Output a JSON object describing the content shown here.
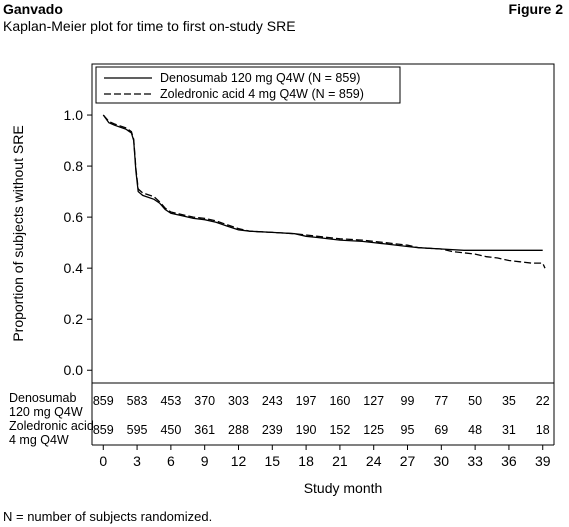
{
  "header": {
    "title": "Ganvado",
    "figure_label": "Figure 2",
    "subtitle": "Kaplan-Meier plot for time to first on-study SRE"
  },
  "footnote": "N = number of subjects randomized.",
  "colors": {
    "line": "#000000",
    "background": "#ffffff"
  },
  "chart_data": {
    "type": "line",
    "title": "Kaplan-Meier plot for time to first on-study SRE",
    "xlabel": "Study month",
    "ylabel": "Proportion of subjects without SRE",
    "xlim": [
      -1,
      40
    ],
    "ylim": [
      -0.05,
      1.2
    ],
    "xticks": [
      0,
      3,
      6,
      9,
      12,
      15,
      18,
      21,
      24,
      27,
      30,
      33,
      36,
      39
    ],
    "yticks": [
      0.0,
      0.2,
      0.4,
      0.6,
      0.8,
      1.0
    ],
    "ytick_labels": [
      "0.0",
      "0.2",
      "0.4",
      "0.6",
      "0.8",
      "1.0"
    ],
    "legend_position": "top-left",
    "series": [
      {
        "name": "Denosumab 120 mg Q4W (N = 859)",
        "style": "solid",
        "points": [
          [
            0,
            1.0
          ],
          [
            0.5,
            0.97
          ],
          [
            1,
            0.96
          ],
          [
            2,
            0.945
          ],
          [
            2.5,
            0.93
          ],
          [
            2.7,
            0.9
          ],
          [
            2.9,
            0.78
          ],
          [
            3.1,
            0.7
          ],
          [
            3.5,
            0.685
          ],
          [
            4.5,
            0.67
          ],
          [
            5,
            0.655
          ],
          [
            5.5,
            0.63
          ],
          [
            6,
            0.615
          ],
          [
            7,
            0.605
          ],
          [
            8,
            0.595
          ],
          [
            9,
            0.59
          ],
          [
            10,
            0.58
          ],
          [
            11,
            0.565
          ],
          [
            12,
            0.55
          ],
          [
            13,
            0.545
          ],
          [
            15,
            0.54
          ],
          [
            17,
            0.535
          ],
          [
            18,
            0.525
          ],
          [
            19,
            0.52
          ],
          [
            21,
            0.51
          ],
          [
            23,
            0.505
          ],
          [
            24,
            0.5
          ],
          [
            25,
            0.495
          ],
          [
            27,
            0.485
          ],
          [
            28,
            0.48
          ],
          [
            30,
            0.475
          ],
          [
            32,
            0.47
          ],
          [
            33,
            0.47
          ],
          [
            36,
            0.47
          ],
          [
            39,
            0.47
          ]
        ]
      },
      {
        "name": "Zoledronic acid 4 mg Q4W (N = 859)",
        "style": "dashed",
        "points": [
          [
            0,
            1.0
          ],
          [
            0.5,
            0.975
          ],
          [
            1,
            0.965
          ],
          [
            2,
            0.95
          ],
          [
            2.5,
            0.935
          ],
          [
            2.7,
            0.905
          ],
          [
            2.9,
            0.79
          ],
          [
            3.1,
            0.71
          ],
          [
            3.5,
            0.695
          ],
          [
            4.5,
            0.68
          ],
          [
            5,
            0.66
          ],
          [
            5.5,
            0.635
          ],
          [
            6,
            0.62
          ],
          [
            7,
            0.61
          ],
          [
            8,
            0.6
          ],
          [
            9,
            0.595
          ],
          [
            10,
            0.585
          ],
          [
            11,
            0.57
          ],
          [
            12,
            0.555
          ],
          [
            13,
            0.545
          ],
          [
            15,
            0.54
          ],
          [
            17,
            0.535
          ],
          [
            18,
            0.53
          ],
          [
            19,
            0.525
          ],
          [
            21,
            0.515
          ],
          [
            23,
            0.51
          ],
          [
            24,
            0.505
          ],
          [
            25,
            0.5
          ],
          [
            27,
            0.49
          ],
          [
            28,
            0.48
          ],
          [
            30,
            0.475
          ],
          [
            31,
            0.465
          ],
          [
            32,
            0.46
          ],
          [
            33,
            0.455
          ],
          [
            34,
            0.445
          ],
          [
            35,
            0.44
          ],
          [
            36,
            0.43
          ],
          [
            37,
            0.425
          ],
          [
            38,
            0.42
          ],
          [
            39,
            0.42
          ],
          [
            39.2,
            0.4
          ]
        ]
      }
    ],
    "risk_table": [
      {
        "label_line1": "Denosumab",
        "label_line2": "120 mg Q4W",
        "counts": [
          "859",
          "583",
          "453",
          "370",
          "303",
          "243",
          "197",
          "160",
          "127",
          "99",
          "77",
          "50",
          "35",
          "22"
        ]
      },
      {
        "label_line1": "Zoledronic acid",
        "label_line2": "4 mg Q4W",
        "counts": [
          "859",
          "595",
          "450",
          "361",
          "288",
          "239",
          "190",
          "152",
          "125",
          "95",
          "69",
          "48",
          "31",
          "18"
        ]
      }
    ]
  }
}
